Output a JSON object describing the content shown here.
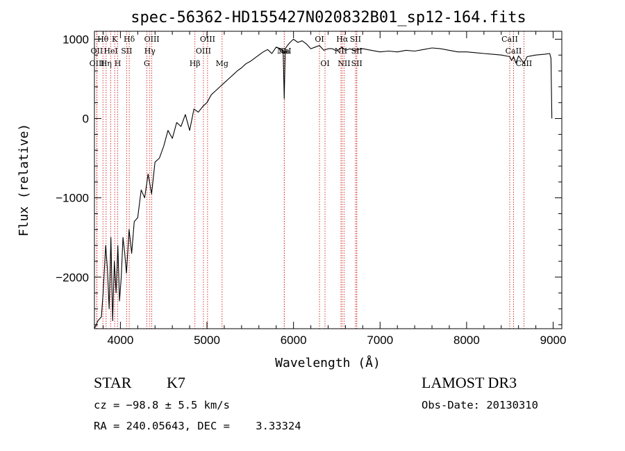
{
  "chart_data": {
    "type": "line",
    "title": "spec-56362-HD155427N020832B01_sp12-164.fits",
    "xlabel": "Wavelength (Å)",
    "ylabel": "Flux (relative)",
    "xlim": [
      3700,
      9100
    ],
    "ylim": [
      -2650,
      1100
    ],
    "x_ticks": [
      4000,
      5000,
      6000,
      7000,
      8000,
      9000
    ],
    "x_tick_labels": [
      "4000",
      "5000",
      "6000",
      "7000",
      "8000",
      "9000"
    ],
    "y_ticks": [
      1000,
      0,
      -1000,
      -2000
    ],
    "y_tick_labels": [
      "1000",
      "0",
      "−1000",
      "−2000"
    ],
    "series": [
      {
        "x": [
          3700,
          3740,
          3780,
          3800,
          3830,
          3850,
          3870,
          3890,
          3910,
          3930,
          3950,
          3970,
          3990,
          4010,
          4030,
          4050,
          4070,
          4100,
          4130,
          4160,
          4200,
          4240,
          4280,
          4320,
          4360,
          4400,
          4450,
          4500,
          4550,
          4600,
          4650,
          4700,
          4750,
          4800,
          4850,
          4900,
          4950,
          5000,
          5050,
          5100,
          5150,
          5200,
          5250,
          5300,
          5350,
          5400,
          5450,
          5500,
          5550,
          5600,
          5650,
          5700,
          5750,
          5800,
          5850,
          5880,
          5893,
          5905,
          5930,
          5960,
          6000,
          6050,
          6100,
          6150,
          6200,
          6250,
          6300,
          6350,
          6400,
          6450,
          6500,
          6560,
          6600,
          6650,
          6700,
          6750,
          6800,
          6900,
          7000,
          7100,
          7200,
          7300,
          7400,
          7500,
          7600,
          7700,
          7800,
          7900,
          8000,
          8100,
          8200,
          8300,
          8400,
          8498,
          8520,
          8542,
          8570,
          8600,
          8662,
          8700,
          8800,
          8900,
          8960,
          8975,
          8985
        ],
        "y": [
          -2650,
          -2550,
          -2500,
          -2200,
          -1600,
          -1900,
          -2400,
          -1500,
          -2550,
          -1800,
          -2200,
          -1600,
          -2300,
          -2000,
          -1500,
          -1700,
          -1950,
          -1400,
          -1700,
          -1300,
          -1250,
          -900,
          -1000,
          -700,
          -950,
          -550,
          -500,
          -350,
          -150,
          -250,
          -50,
          -100,
          50,
          -150,
          120,
          80,
          150,
          200,
          300,
          350,
          400,
          450,
          500,
          550,
          600,
          640,
          690,
          720,
          760,
          800,
          840,
          870,
          820,
          900,
          880,
          860,
          250,
          880,
          920,
          960,
          1000,
          960,
          980,
          940,
          880,
          900,
          920,
          860,
          880,
          880,
          850,
          900,
          860,
          880,
          860,
          870,
          880,
          860,
          840,
          850,
          840,
          860,
          850,
          870,
          890,
          880,
          860,
          840,
          840,
          830,
          820,
          810,
          800,
          780,
          730,
          780,
          700,
          790,
          700,
          780,
          800,
          810,
          820,
          760,
          0
        ]
      }
    ],
    "spectral_lines": [
      {
        "label": "Hθ",
        "wave": 3798,
        "row": 1
      },
      {
        "label": "OII",
        "wave": 3727,
        "row": 2
      },
      {
        "label": "OIII",
        "wave": 3729,
        "row": 3
      },
      {
        "label": "K",
        "wave": 3934,
        "row": 1
      },
      {
        "label": "Hδ",
        "wave": 4102,
        "row": 1
      },
      {
        "label": "Hη",
        "wave": 3835,
        "row": 3
      },
      {
        "label": "HeI",
        "wave": 3889,
        "row": 2
      },
      {
        "label": "SII",
        "wave": 4072,
        "row": 2
      },
      {
        "label": "H",
        "wave": 3969,
        "row": 3
      },
      {
        "label": "OIII",
        "wave": 4363,
        "row": 1
      },
      {
        "label": "Hγ",
        "wave": 4340,
        "row": 2
      },
      {
        "label": "G",
        "wave": 4305,
        "row": 3
      },
      {
        "label": "OIII",
        "wave": 5007,
        "row": 1
      },
      {
        "label": "OIII",
        "wave": 4959,
        "row": 2
      },
      {
        "label": "Hβ",
        "wave": 4861,
        "row": 3
      },
      {
        "label": "Mg",
        "wave": 5175,
        "row": 3
      },
      {
        "label": "NaI",
        "wave": 5893,
        "row": 2
      },
      {
        "label": "Na",
        "wave": 5893,
        "row": 2
      },
      {
        "label": "OI",
        "wave": 6300,
        "row": 1
      },
      {
        "label": "OI",
        "wave": 6364,
        "row": 3
      },
      {
        "label": "Hα",
        "wave": 6563,
        "row": 1
      },
      {
        "label": "SII",
        "wave": 6716,
        "row": 1
      },
      {
        "label": "NII",
        "wave": 6548,
        "row": 2
      },
      {
        "label": "SII",
        "wave": 6731,
        "row": 2
      },
      {
        "label": "NII",
        "wave": 6584,
        "row": 3
      },
      {
        "label": "SII",
        "wave": 6731,
        "row": 3
      },
      {
        "label": "CaII",
        "wave": 8498,
        "row": 1
      },
      {
        "label": "CaII",
        "wave": 8542,
        "row": 2
      },
      {
        "label": "CaII",
        "wave": 8662,
        "row": 3
      }
    ],
    "grid": false,
    "colors": {
      "spectrum": "#000000",
      "line_markers": "#cc0000"
    }
  },
  "info": {
    "object_class": "STAR",
    "subclass": "K7",
    "survey": "LAMOST DR3",
    "redshift": "cz = −98.8 ± 5.5 km/s",
    "obs_date": "Obs-Date: 20130310",
    "coords": "RA = 240.05643, DEC =    3.33324"
  }
}
